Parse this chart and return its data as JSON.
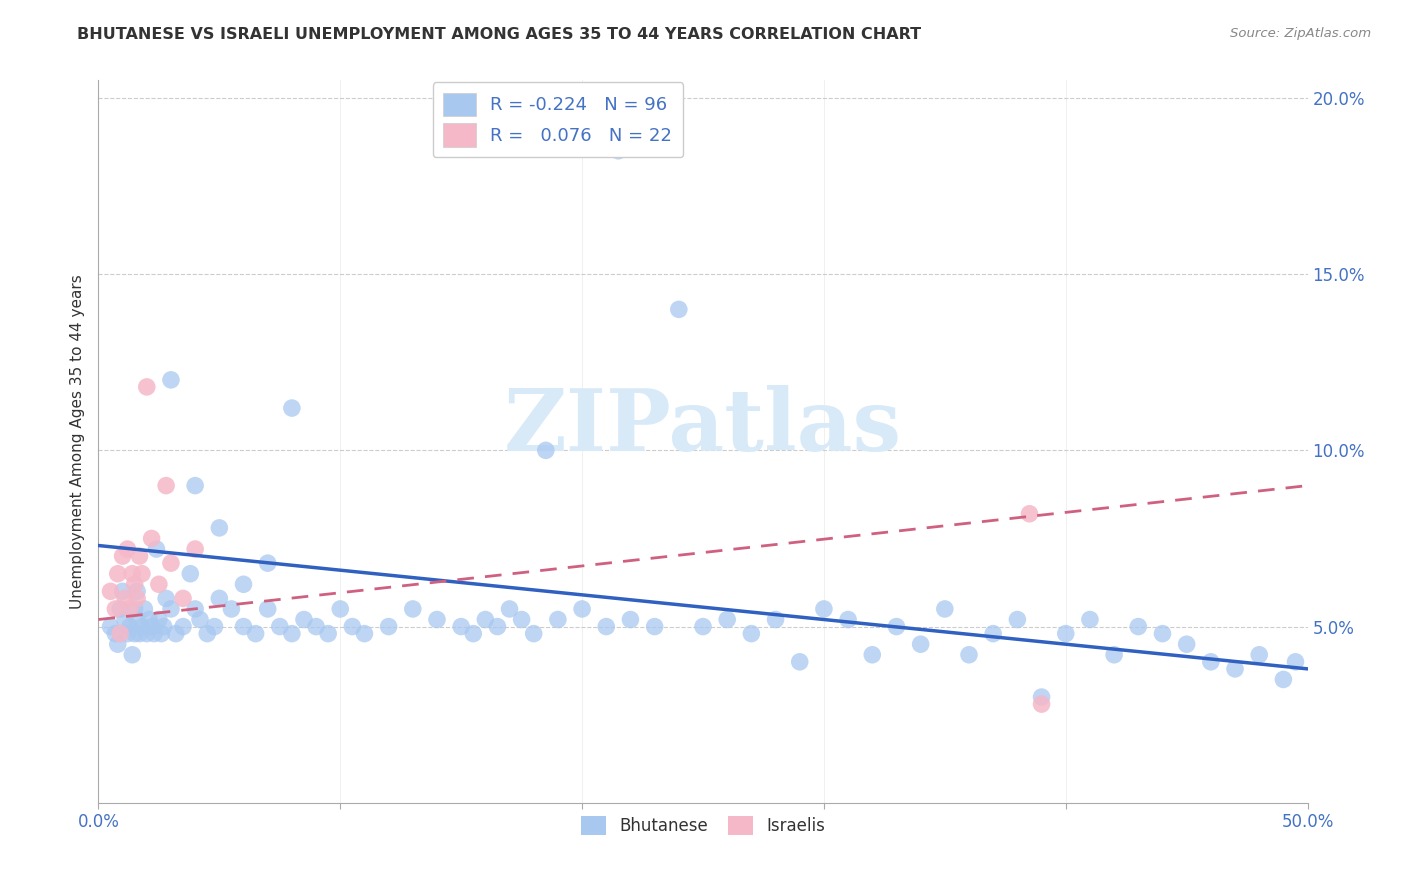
{
  "title": "BHUTANESE VS ISRAELI UNEMPLOYMENT AMONG AGES 35 TO 44 YEARS CORRELATION CHART",
  "source": "Source: ZipAtlas.com",
  "ylabel": "Unemployment Among Ages 35 to 44 years",
  "xlim": [
    0.0,
    0.5
  ],
  "ylim": [
    0.0,
    0.205
  ],
  "xtick_positions": [
    0.0,
    0.1,
    0.2,
    0.3,
    0.4,
    0.5
  ],
  "xtick_labels_show": [
    "0.0%",
    "",
    "",
    "",
    "",
    "50.0%"
  ],
  "ytick_positions": [
    0.0,
    0.05,
    0.1,
    0.15,
    0.2
  ],
  "ytick_labels": [
    "",
    "5.0%",
    "10.0%",
    "15.0%",
    "20.0%"
  ],
  "blue_scatter_color": "#A8C8F0",
  "pink_scatter_color": "#F5B8C8",
  "trend_blue_color": "#3060C0",
  "trend_pink_color": "#D06080",
  "tick_color": "#4472C4",
  "grid_color": "#CCCCCC",
  "title_color": "#333333",
  "source_color": "#888888",
  "watermark_color": "#D8EAF8",
  "legend_box_color": "#FFFFFF",
  "legend_border_color": "#CCCCCC",
  "blue_line_start_y": 0.073,
  "blue_line_end_y": 0.038,
  "pink_line_start_y": 0.052,
  "pink_line_end_y": 0.09,
  "seed": 17,
  "bhutanese_x": [
    0.005,
    0.007,
    0.008,
    0.009,
    0.01,
    0.011,
    0.012,
    0.013,
    0.014,
    0.015,
    0.015,
    0.016,
    0.016,
    0.017,
    0.018,
    0.019,
    0.02,
    0.021,
    0.022,
    0.023,
    0.024,
    0.025,
    0.026,
    0.027,
    0.028,
    0.03,
    0.032,
    0.035,
    0.038,
    0.04,
    0.042,
    0.045,
    0.048,
    0.05,
    0.055,
    0.06,
    0.065,
    0.07,
    0.075,
    0.08,
    0.085,
    0.09,
    0.095,
    0.1,
    0.105,
    0.11,
    0.12,
    0.13,
    0.14,
    0.15,
    0.155,
    0.16,
    0.165,
    0.17,
    0.175,
    0.18,
    0.185,
    0.19,
    0.2,
    0.21,
    0.215,
    0.22,
    0.23,
    0.24,
    0.25,
    0.26,
    0.27,
    0.28,
    0.29,
    0.3,
    0.31,
    0.32,
    0.33,
    0.34,
    0.35,
    0.36,
    0.37,
    0.38,
    0.39,
    0.4,
    0.41,
    0.42,
    0.43,
    0.44,
    0.45,
    0.46,
    0.47,
    0.48,
    0.49,
    0.495,
    0.03,
    0.04,
    0.05,
    0.06,
    0.07,
    0.08
  ],
  "bhutanese_y": [
    0.05,
    0.048,
    0.045,
    0.055,
    0.06,
    0.052,
    0.048,
    0.05,
    0.042,
    0.055,
    0.048,
    0.052,
    0.06,
    0.048,
    0.05,
    0.055,
    0.048,
    0.052,
    0.05,
    0.048,
    0.072,
    0.052,
    0.048,
    0.05,
    0.058,
    0.055,
    0.048,
    0.05,
    0.065,
    0.055,
    0.052,
    0.048,
    0.05,
    0.058,
    0.055,
    0.05,
    0.048,
    0.055,
    0.05,
    0.048,
    0.052,
    0.05,
    0.048,
    0.055,
    0.05,
    0.048,
    0.05,
    0.055,
    0.052,
    0.05,
    0.048,
    0.052,
    0.05,
    0.055,
    0.052,
    0.048,
    0.1,
    0.052,
    0.055,
    0.05,
    0.185,
    0.052,
    0.05,
    0.14,
    0.05,
    0.052,
    0.048,
    0.052,
    0.04,
    0.055,
    0.052,
    0.042,
    0.05,
    0.045,
    0.055,
    0.042,
    0.048,
    0.052,
    0.03,
    0.048,
    0.052,
    0.042,
    0.05,
    0.048,
    0.045,
    0.04,
    0.038,
    0.042,
    0.035,
    0.04,
    0.12,
    0.09,
    0.078,
    0.062,
    0.068,
    0.112
  ],
  "israeli_x": [
    0.005,
    0.007,
    0.008,
    0.009,
    0.01,
    0.011,
    0.012,
    0.013,
    0.014,
    0.015,
    0.016,
    0.017,
    0.018,
    0.02,
    0.022,
    0.025,
    0.028,
    0.03,
    0.035,
    0.04,
    0.385,
    0.39
  ],
  "israeli_y": [
    0.06,
    0.055,
    0.065,
    0.048,
    0.07,
    0.058,
    0.072,
    0.055,
    0.065,
    0.062,
    0.058,
    0.07,
    0.065,
    0.118,
    0.075,
    0.062,
    0.09,
    0.068,
    0.058,
    0.072,
    0.082,
    0.028
  ]
}
